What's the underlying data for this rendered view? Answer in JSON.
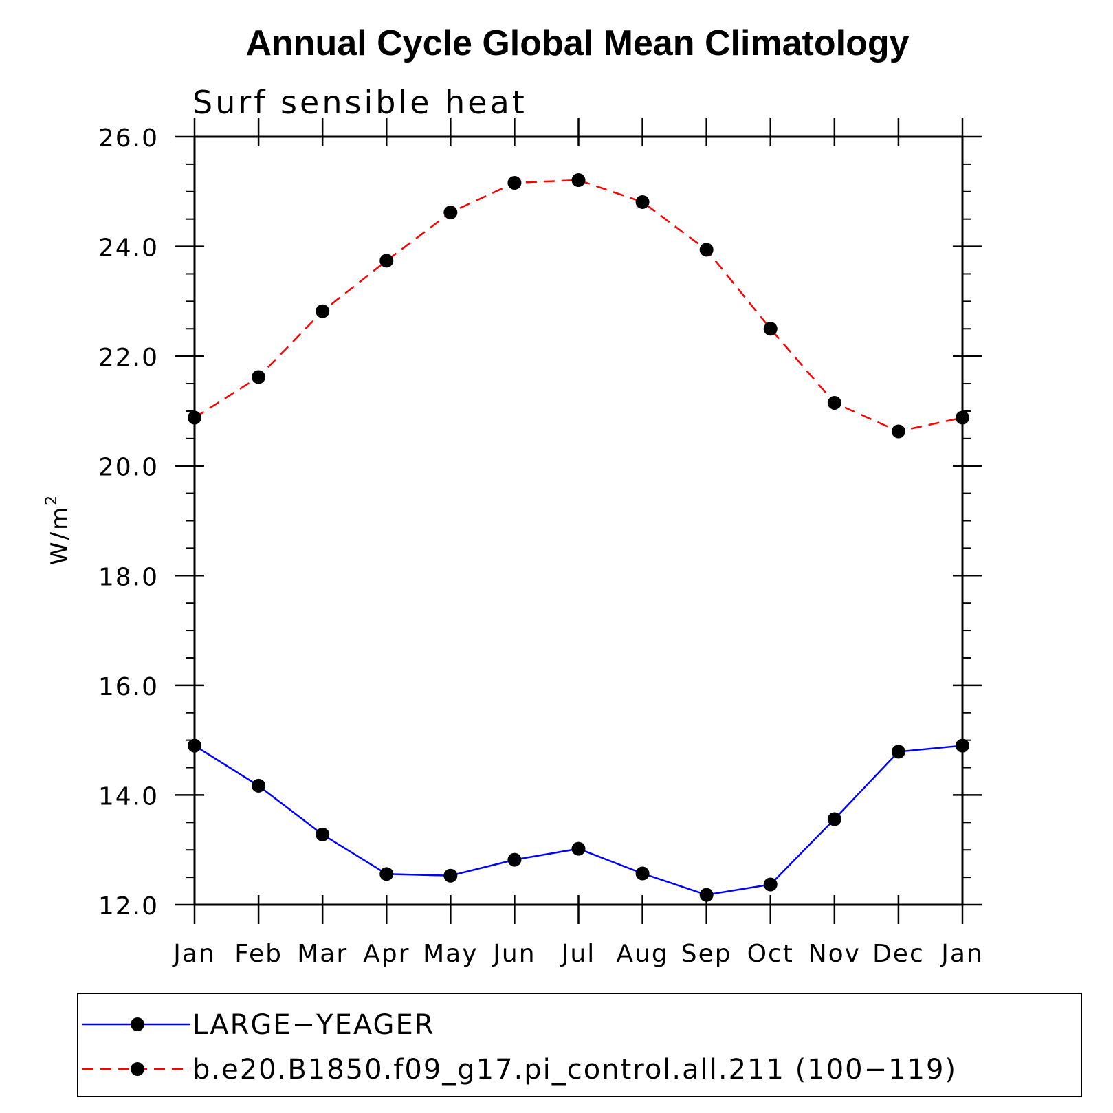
{
  "chart_data": {
    "type": "line",
    "title": "Annual Cycle Global Mean Climatology",
    "subtitle": "Surf sensible heat",
    "xlabel": "",
    "ylabel": "W/m",
    "ylabel_superscript": "2",
    "ylim": [
      12.0,
      26.0
    ],
    "yticks": [
      "12.0",
      "14.0",
      "16.0",
      "18.0",
      "20.0",
      "22.0",
      "24.0",
      "26.0"
    ],
    "categories": [
      "Jan",
      "Feb",
      "Mar",
      "Apr",
      "May",
      "Jun",
      "Jul",
      "Aug",
      "Sep",
      "Oct",
      "Nov",
      "Dec",
      "Jan"
    ],
    "series": [
      {
        "name": "LARGE−YEAGER",
        "color": "#0000ff",
        "dash": "solid",
        "marker": "circle",
        "values": [
          14.9,
          14.17,
          13.28,
          12.56,
          12.53,
          12.82,
          13.02,
          12.57,
          12.18,
          12.37,
          13.56,
          14.79,
          14.9
        ]
      },
      {
        "name": "b.e20.B1850.f09_g17.pi_control.all.211 (100−119)",
        "color": "#ff0000",
        "dash": "dashed",
        "marker": "circle",
        "values": [
          20.88,
          21.62,
          22.82,
          23.74,
          24.62,
          25.16,
          25.21,
          24.81,
          23.94,
          22.5,
          21.15,
          20.63,
          20.88
        ]
      }
    ],
    "legend_position": "bottom"
  }
}
